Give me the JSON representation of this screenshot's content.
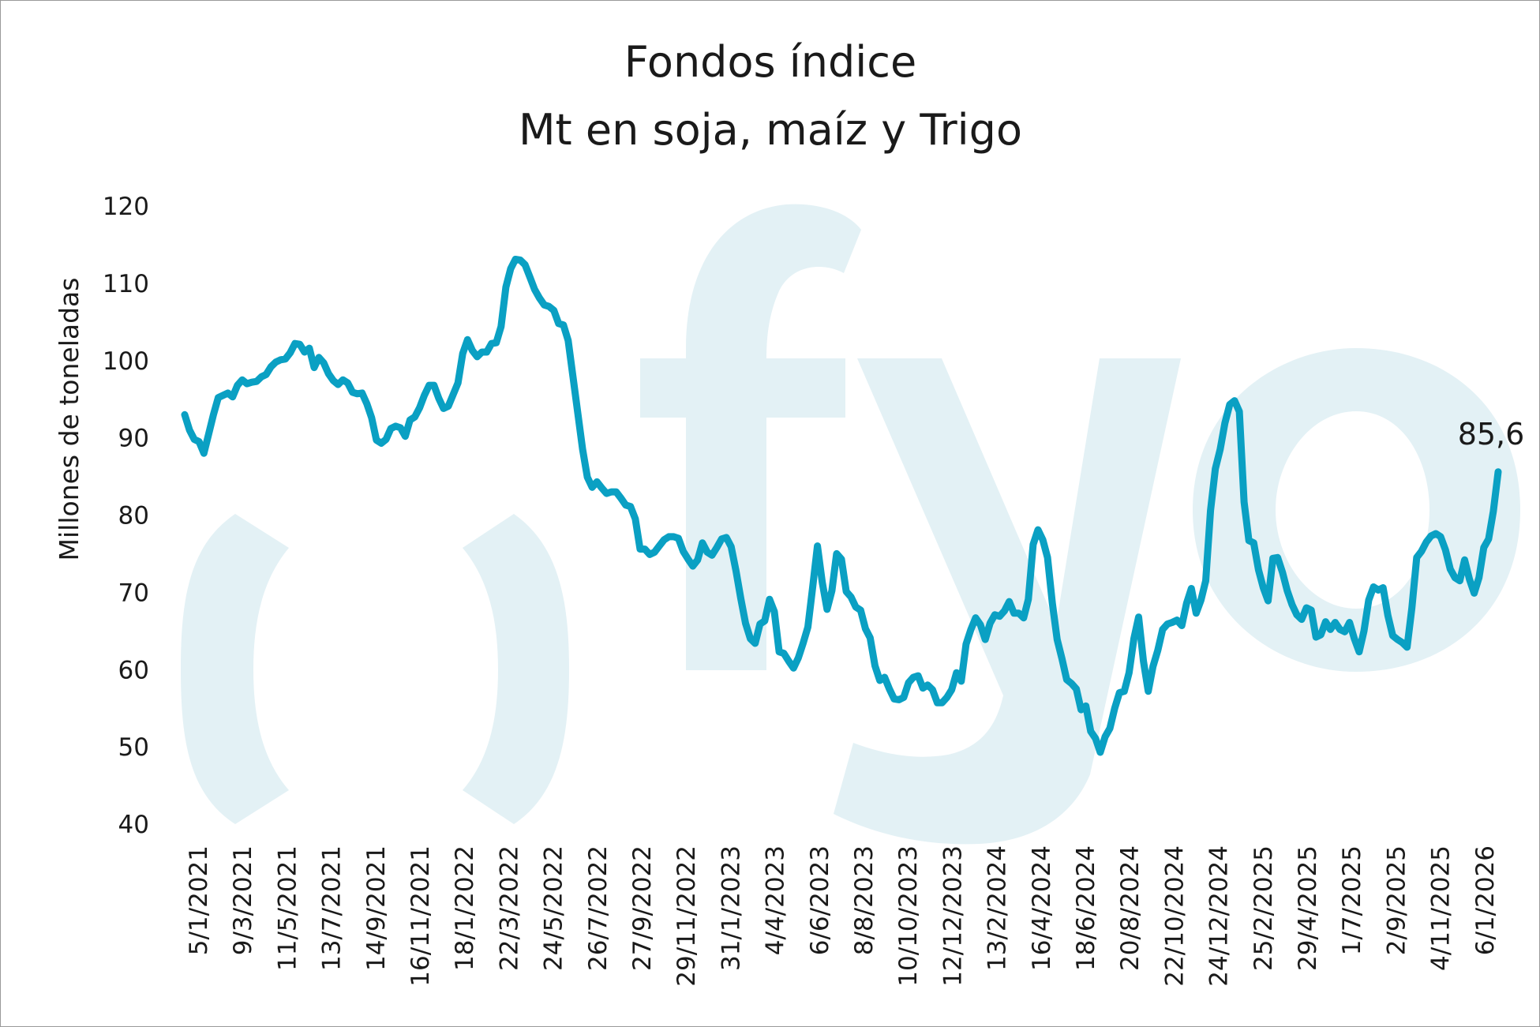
{
  "chart_data": {
    "type": "line",
    "title": "Fondos índice",
    "subtitle": "Mt en soja, maíz y Trigo",
    "xlabel": "",
    "ylabel": "Millones de toneladas",
    "ylim": [
      40,
      120
    ],
    "yticks": [
      40,
      50,
      60,
      70,
      80,
      90,
      100,
      110,
      120
    ],
    "grid": false,
    "legend": "none",
    "watermark": "fyo",
    "colors": {
      "line": "#0aa0c3",
      "watermark": "#e3f1f5"
    },
    "x_tick_labels": [
      "5/1/2021",
      "9/3/2021",
      "11/5/2021",
      "13/7/2021",
      "14/9/2021",
      "16/11/2021",
      "18/1/2022",
      "22/3/2022",
      "24/5/2022",
      "26/7/2022",
      "27/9/2022",
      "29/11/2022",
      "31/1/2023",
      "4/4/2023",
      "6/6/2023",
      "8/8/2023",
      "10/10/2023",
      "12/12/2023",
      "13/2/2024",
      "16/4/2024",
      "18/6/2024",
      "20/8/2024",
      "22/10/2024",
      "24/12/2024",
      "25/2/2025",
      "29/4/2025",
      "1/7/2025",
      "2/9/2025",
      "4/11/2025",
      "6/1/2026"
    ],
    "last_value_label": "85,6",
    "series": [
      {
        "values": [
          93.0,
          91.0,
          89.8,
          89.5,
          88.0,
          90.5,
          93.0,
          95.2,
          95.5,
          95.8,
          95.3,
          96.8,
          97.5,
          97.0,
          97.2,
          97.3,
          97.9,
          98.2,
          99.2,
          99.8,
          100.1,
          100.2,
          101.0,
          102.2,
          102.1,
          101.1,
          101.6,
          99.1,
          100.4,
          99.7,
          98.3,
          97.4,
          96.9,
          97.5,
          97.1,
          95.9,
          95.7,
          95.8,
          94.4,
          92.6,
          89.7,
          89.3,
          89.8,
          91.2,
          91.5,
          91.3,
          90.2,
          92.3,
          92.7,
          93.9,
          95.5,
          96.8,
          96.8,
          95.1,
          93.8,
          94.1,
          95.6,
          97.1,
          100.9,
          102.7,
          101.3,
          100.5,
          101.1,
          101.1,
          102.2,
          102.3,
          104.4,
          109.5,
          111.9,
          113.1,
          113.0,
          112.4,
          110.8,
          109.2,
          108.1,
          107.2,
          107.0,
          106.5,
          104.8,
          104.6,
          102.6,
          97.9,
          93.2,
          88.5,
          84.9,
          83.6,
          84.3,
          83.5,
          82.8,
          83.0,
          83.0,
          82.2,
          81.3,
          81.1,
          79.5,
          75.6,
          75.6,
          74.9,
          75.2,
          76.0,
          76.8,
          77.2,
          77.2,
          77.0,
          75.3,
          74.3,
          73.4,
          74.2,
          76.4,
          75.2,
          74.8,
          75.8,
          76.9,
          77.1,
          75.9,
          72.8,
          69.2,
          66.0,
          64.0,
          63.4,
          65.9,
          66.3,
          69.1,
          67.5,
          62.3,
          62.1,
          61.1,
          60.2,
          61.5,
          63.4,
          65.5,
          70.7,
          76.0,
          71.3,
          67.8,
          70.2,
          75.0,
          74.3,
          70.1,
          69.4,
          68.1,
          67.7,
          65.3,
          64.1,
          60.5,
          58.6,
          59.0,
          57.5,
          56.2,
          56.1,
          56.4,
          58.3,
          59.0,
          59.2,
          57.6,
          58.0,
          57.4,
          55.7,
          55.7,
          56.4,
          57.4,
          59.6,
          58.5,
          63.3,
          65.2,
          66.7,
          65.8,
          63.9,
          66.0,
          67.1,
          66.9,
          67.6,
          68.8,
          67.3,
          67.3,
          66.7,
          69.1,
          76.2,
          78.1,
          76.8,
          74.5,
          68.6,
          63.9,
          61.4,
          58.7,
          58.2,
          57.5,
          54.8,
          55.3,
          52.0,
          51.1,
          49.3,
          51.3,
          52.4,
          55.0,
          57.0,
          57.2,
          59.6,
          64.0,
          66.8,
          61.1,
          57.2,
          60.4,
          62.5,
          65.2,
          65.9,
          66.1,
          66.4,
          65.7,
          68.6,
          70.5,
          67.3,
          69.0,
          71.5,
          80.6,
          86.0,
          88.5,
          91.9,
          94.3,
          94.8,
          93.4,
          81.7,
          76.7,
          76.4,
          72.9,
          70.6,
          68.9,
          74.4,
          74.5,
          72.6,
          70.2,
          68.4,
          67.1,
          66.5,
          68.0,
          67.7,
          64.2,
          64.5,
          66.2,
          65.2,
          66.1,
          65.2,
          64.9,
          66.1,
          64.0,
          62.3,
          65.0,
          69.0,
          70.7,
          70.3,
          70.6,
          67.0,
          64.4,
          63.9,
          63.5,
          62.9,
          68.0,
          74.5,
          75.3,
          76.5,
          77.3,
          77.6,
          77.2,
          75.5,
          73.0,
          71.9,
          71.5,
          74.2,
          71.7,
          69.9,
          71.9,
          75.8,
          76.9,
          80.5,
          85.6
        ]
      }
    ]
  }
}
